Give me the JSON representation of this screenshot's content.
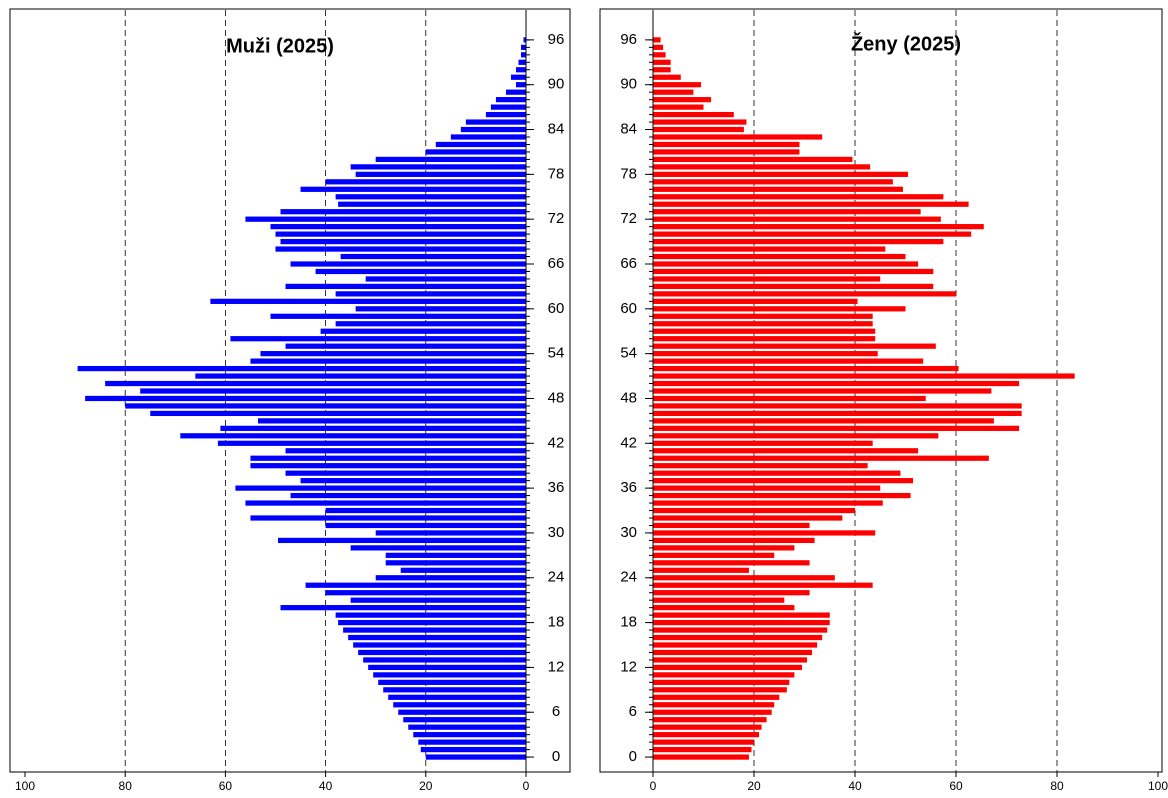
{
  "chart_data": [
    {
      "type": "bar",
      "orientation": "horizontal",
      "title": "Muži (2025)",
      "color": "#0000ff",
      "x_reversed": true,
      "grid": true,
      "xlim": [
        0,
        100
      ],
      "xticks": [
        0,
        20,
        40,
        60,
        80,
        100
      ],
      "ylim": [
        -2,
        100
      ],
      "yticks": [
        0,
        6,
        12,
        18,
        24,
        30,
        36,
        42,
        48,
        54,
        60,
        66,
        72,
        78,
        84,
        90,
        96
      ],
      "y": [
        0,
        1,
        2,
        3,
        4,
        5,
        6,
        7,
        8,
        9,
        10,
        11,
        12,
        13,
        14,
        15,
        16,
        17,
        18,
        19,
        20,
        21,
        22,
        23,
        24,
        25,
        26,
        27,
        28,
        29,
        30,
        31,
        32,
        33,
        34,
        35,
        36,
        37,
        38,
        39,
        40,
        41,
        42,
        43,
        44,
        45,
        46,
        47,
        48,
        49,
        50,
        51,
        52,
        53,
        54,
        55,
        56,
        57,
        58,
        59,
        60,
        61,
        62,
        63,
        64,
        65,
        66,
        67,
        68,
        69,
        70,
        71,
        72,
        73,
        74,
        75,
        76,
        77,
        78,
        79,
        80,
        81,
        82,
        83,
        84,
        85,
        86,
        87,
        88,
        89,
        90,
        91,
        92,
        93,
        94,
        95,
        96
      ],
      "values": [
        20,
        21,
        21.5,
        22.5,
        23.5,
        24.5,
        25.5,
        26.5,
        27.5,
        28.5,
        29.5,
        30.5,
        31.5,
        32.5,
        33.5,
        34.5,
        35.5,
        36.5,
        37.5,
        38,
        49,
        35,
        40,
        44,
        30,
        25,
        28,
        28,
        35,
        49.5,
        30,
        40,
        55,
        40,
        56,
        47,
        58,
        45,
        48,
        55,
        55,
        48,
        61.5,
        69,
        61,
        53.5,
        75,
        80,
        88,
        77,
        84,
        66,
        89.5,
        55,
        53,
        48,
        59,
        41,
        38,
        51,
        34,
        63,
        38,
        48,
        32,
        42,
        47,
        37,
        50,
        49,
        50,
        51,
        56,
        49,
        37.5,
        38,
        45,
        40,
        34,
        35,
        30,
        20,
        18,
        15,
        13,
        12,
        8,
        7,
        6,
        4,
        2,
        3,
        2,
        1.5,
        1,
        1,
        0.5
      ]
    },
    {
      "type": "bar",
      "orientation": "horizontal",
      "title": "Ženy (2025)",
      "color": "#ff0000",
      "x_reversed": false,
      "grid": true,
      "xlim": [
        0,
        100
      ],
      "xticks": [
        0,
        20,
        40,
        60,
        80,
        100
      ],
      "ylim": [
        -2,
        100
      ],
      "yticks": [
        0,
        6,
        12,
        18,
        24,
        30,
        36,
        42,
        48,
        54,
        60,
        66,
        72,
        78,
        84,
        90,
        96
      ],
      "y": [
        0,
        1,
        2,
        3,
        4,
        5,
        6,
        7,
        8,
        9,
        10,
        11,
        12,
        13,
        14,
        15,
        16,
        17,
        18,
        19,
        20,
        21,
        22,
        23,
        24,
        25,
        26,
        27,
        28,
        29,
        30,
        31,
        32,
        33,
        34,
        35,
        36,
        37,
        38,
        39,
        40,
        41,
        42,
        43,
        44,
        45,
        46,
        47,
        48,
        49,
        50,
        51,
        52,
        53,
        54,
        55,
        56,
        57,
        58,
        59,
        60,
        61,
        62,
        63,
        64,
        65,
        66,
        67,
        68,
        69,
        70,
        71,
        72,
        73,
        74,
        75,
        76,
        77,
        78,
        79,
        80,
        81,
        82,
        83,
        84,
        85,
        86,
        87,
        88,
        89,
        90,
        91,
        92,
        93,
        94,
        95,
        96
      ],
      "values": [
        19,
        19.5,
        20,
        21,
        21.5,
        22.5,
        23.5,
        24,
        25,
        26.5,
        27,
        28,
        29.5,
        30.5,
        31.5,
        32.5,
        33.5,
        34.5,
        35,
        35,
        28,
        26,
        31,
        43.5,
        36,
        19,
        31,
        24,
        28,
        32,
        44,
        31,
        37.5,
        40,
        45.5,
        51,
        45,
        51.5,
        49,
        42.5,
        66.5,
        52.5,
        43.5,
        56.5,
        72.5,
        67.5,
        73,
        73,
        54,
        67,
        72.5,
        83.5,
        60.5,
        53.5,
        44.5,
        56,
        44,
        44,
        43.5,
        43.5,
        50,
        40.5,
        60,
        55.5,
        45,
        55.5,
        52.5,
        50,
        46,
        57.5,
        63,
        65.5,
        57,
        53,
        62.5,
        57.5,
        49.5,
        47.5,
        50.5,
        43,
        39.5,
        29,
        29,
        33.5,
        18,
        18.5,
        16,
        10,
        11.5,
        8,
        9.5,
        5.5,
        3.5,
        3.5,
        2.5,
        2,
        1.5
      ]
    }
  ]
}
